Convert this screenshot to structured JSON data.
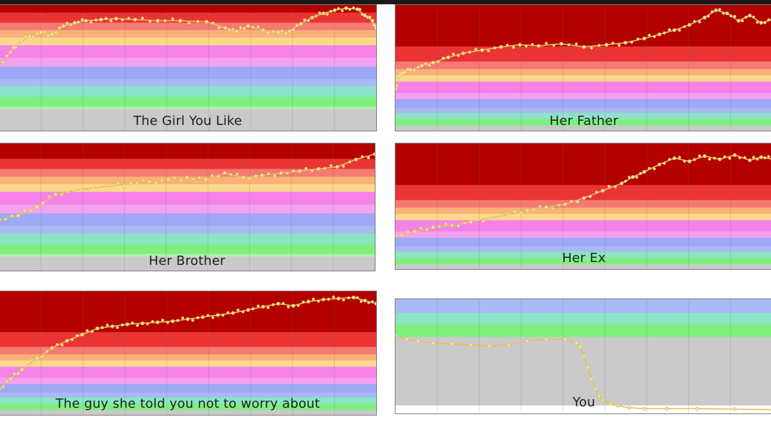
{
  "bands": {
    "red": [
      "#b30000",
      "#ea3434",
      "#f47a72"
    ],
    "orange": [
      "#f9b178"
    ],
    "yellow": [
      "#fbd98c"
    ],
    "pink": [
      "#f582e8",
      "#f3a1ee"
    ],
    "blue": [
      "#9da9f6",
      "#a9b9f3"
    ],
    "teal": [
      "#8ce4c6"
    ],
    "green": [
      "#7ff07e",
      "#b3f0b0"
    ],
    "gray": [
      "#c9c9c9"
    ],
    "line": "#e0c15a",
    "marker": "#f2e2a2"
  },
  "chart_data": [
    {
      "type": "line",
      "title": "The Girl You Like",
      "ylim": [
        0,
        12
      ],
      "x": [
        0,
        3,
        5,
        8,
        11,
        14,
        17,
        20,
        23,
        27,
        31,
        36,
        42,
        48,
        55,
        60,
        63,
        66,
        70,
        74,
        77,
        80,
        83,
        86,
        89,
        92,
        95,
        97,
        99,
        100
      ],
      "y": [
        6.2,
        7.5,
        8.3,
        9.0,
        9.4,
        9.2,
        10.0,
        10.3,
        10.5,
        10.6,
        10.7,
        10.6,
        10.5,
        10.5,
        10.4,
        9.8,
        9.5,
        10.0,
        9.6,
        9.4,
        9.5,
        10.2,
        10.8,
        11.2,
        11.5,
        11.7,
        11.6,
        11.0,
        10.5,
        9.8
      ]
    },
    {
      "type": "line",
      "title": "Her Father",
      "ylim": [
        0,
        12
      ],
      "x": [
        0,
        1,
        2,
        4,
        7,
        10,
        14,
        18,
        23,
        28,
        33,
        38,
        44,
        50,
        56,
        61,
        66,
        70,
        74,
        78,
        82,
        85,
        88,
        91,
        94,
        97,
        100
      ],
      "y": [
        4.0,
        5.2,
        5.5,
        5.8,
        6.2,
        6.5,
        7.0,
        7.4,
        7.7,
        8.0,
        8.2,
        8.1,
        8.3,
        8.0,
        8.2,
        8.4,
        8.8,
        9.2,
        9.6,
        10.1,
        10.8,
        11.5,
        11.2,
        10.5,
        11.0,
        10.3,
        10.6
      ]
    },
    {
      "type": "line",
      "title": "Her Brother",
      "ylim": [
        0,
        12
      ],
      "x": [
        0,
        5,
        10,
        15,
        20,
        25,
        30,
        35,
        40,
        45,
        50,
        55,
        60,
        65,
        70,
        75,
        80,
        85,
        90,
        95,
        100
      ],
      "y": [
        4.8,
        5.2,
        6.0,
        7.2,
        7.6,
        7.8,
        8.0,
        8.2,
        8.4,
        8.6,
        8.8,
        8.6,
        9.2,
        8.8,
        9.0,
        9.2,
        9.4,
        9.6,
        9.8,
        10.5,
        11.0
      ]
    },
    {
      "type": "line",
      "title": "Her Ex",
      "ylim": [
        0,
        12
      ],
      "x": [
        0,
        5,
        10,
        15,
        20,
        25,
        30,
        35,
        40,
        45,
        50,
        55,
        60,
        63,
        66,
        70,
        74,
        78,
        82,
        86,
        90,
        94,
        97,
        100
      ],
      "y": [
        3.2,
        3.6,
        4.0,
        4.2,
        4.5,
        4.9,
        5.2,
        5.6,
        5.9,
        6.2,
        6.8,
        7.5,
        8.2,
        8.8,
        9.3,
        10.0,
        10.6,
        10.3,
        10.8,
        10.5,
        10.9,
        10.4,
        10.7,
        10.5
      ]
    },
    {
      "type": "line",
      "title": "The guy she told you not to worry about",
      "ylim": [
        0,
        12
      ],
      "x": [
        0,
        3,
        6,
        10,
        14,
        18,
        22,
        26,
        30,
        34,
        38,
        42,
        46,
        50,
        54,
        58,
        62,
        66,
        70,
        74,
        78,
        82,
        86,
        90,
        94,
        97,
        100
      ],
      "y": [
        2.5,
        3.5,
        4.4,
        5.5,
        6.5,
        7.2,
        7.8,
        8.4,
        8.6,
        8.8,
        8.9,
        9.0,
        9.1,
        9.3,
        9.5,
        9.7,
        9.9,
        10.2,
        10.5,
        10.8,
        10.6,
        11.0,
        11.2,
        11.3,
        11.4,
        11.1,
        10.8
      ]
    },
    {
      "type": "line",
      "title": "You",
      "ylim": [
        0,
        12
      ],
      "x": [
        0,
        3,
        6,
        10,
        15,
        20,
        25,
        30,
        35,
        40,
        45,
        48,
        49,
        50,
        51,
        52,
        53,
        54,
        55,
        57,
        59,
        62,
        66,
        72,
        80,
        90,
        100
      ],
      "y": [
        8.2,
        7.8,
        7.6,
        7.4,
        7.3,
        7.2,
        7.1,
        7.2,
        7.6,
        7.8,
        7.8,
        7.4,
        7.0,
        6.0,
        4.8,
        3.6,
        2.6,
        1.8,
        1.4,
        1.0,
        0.8,
        0.6,
        0.5,
        0.5,
        0.5,
        0.45,
        0.4
      ]
    }
  ]
}
